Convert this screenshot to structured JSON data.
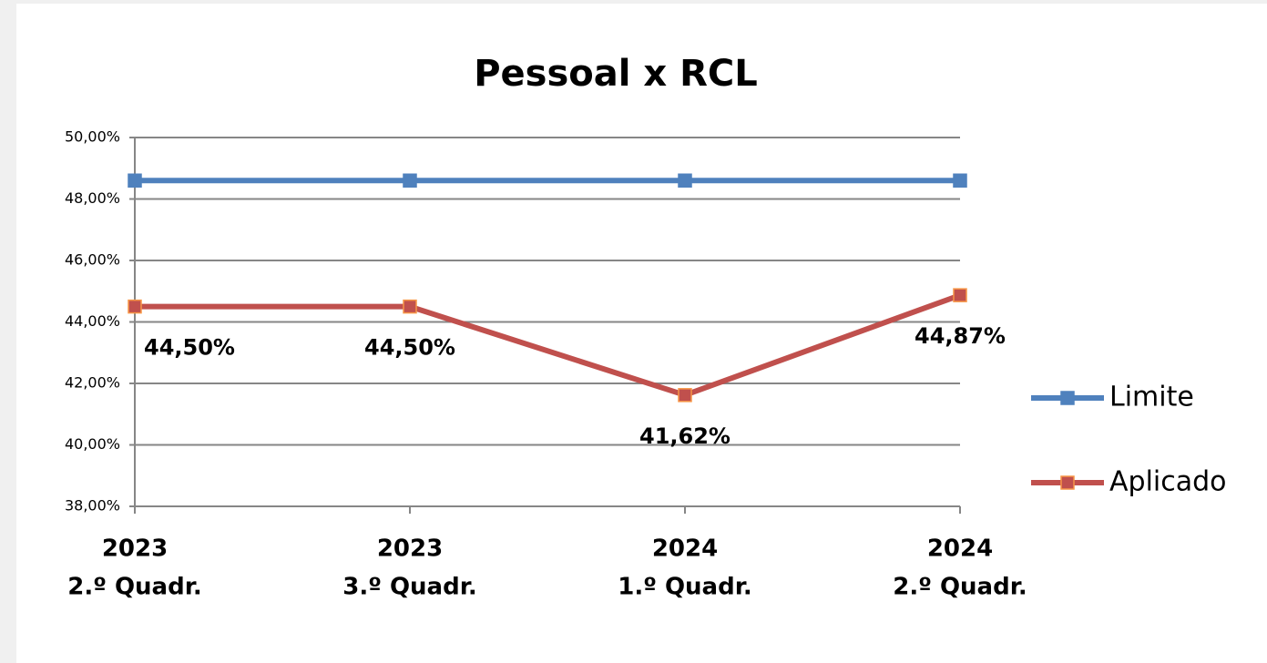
{
  "chart_data": {
    "type": "line",
    "title": "Pessoal x RCL",
    "categories": [
      [
        "2023",
        "2.º Quadr."
      ],
      [
        "2023",
        "3.º Quadr."
      ],
      [
        "2024",
        "1.º Quadr."
      ],
      [
        "2024",
        "2.º Quadr."
      ]
    ],
    "series": [
      {
        "name": "Limite",
        "color": "#4f81bd",
        "values": [
          48.6,
          48.6,
          48.6,
          48.6
        ]
      },
      {
        "name": "Aplicado",
        "color": "#c0504d",
        "marker_edge": "#f79646",
        "values": [
          44.5,
          44.5,
          41.62,
          44.87
        ],
        "value_labels": [
          "44,50%",
          "44,50%",
          "41,62%",
          "44,87%"
        ]
      }
    ],
    "ylim": [
      38,
      50
    ],
    "yticks": [
      {
        "value": 38,
        "label": "38,00%"
      },
      {
        "value": 40,
        "label": "40,00%"
      },
      {
        "value": 42,
        "label": "42,00%"
      },
      {
        "value": 44,
        "label": "44,00%"
      },
      {
        "value": 46,
        "label": "46,00%"
      },
      {
        "value": 48,
        "label": "48,00%"
      },
      {
        "value": 50,
        "label": "50,00%"
      }
    ],
    "grid": true,
    "legend": "right"
  }
}
